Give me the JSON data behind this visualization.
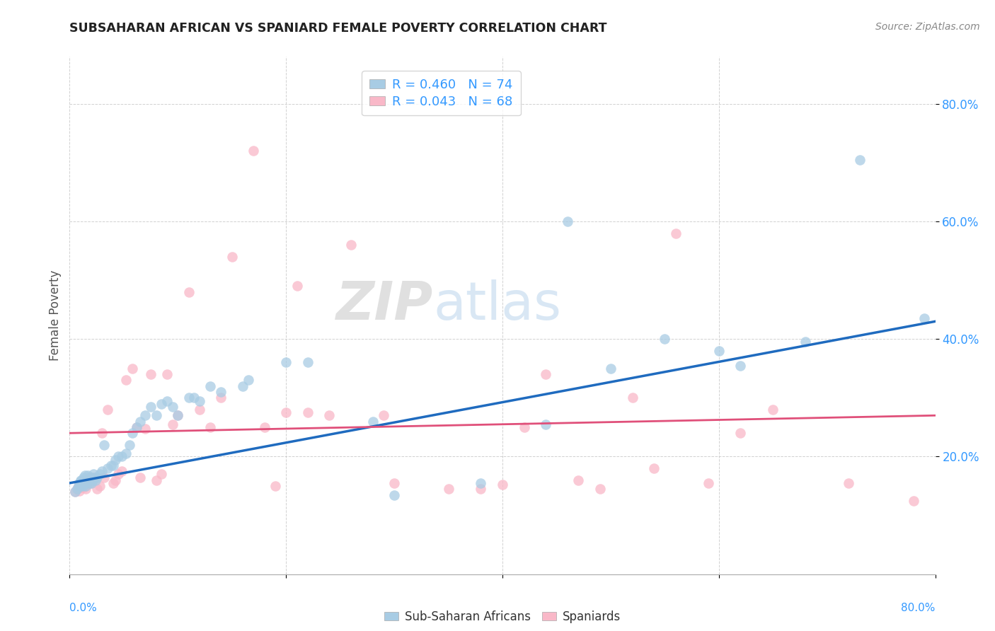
{
  "title": "SUBSAHARAN AFRICAN VS SPANIARD FEMALE POVERTY CORRELATION CHART",
  "source": "Source: ZipAtlas.com",
  "ylabel": "Female Poverty",
  "legend_label1": "Sub-Saharan Africans",
  "legend_label2": "Spaniards",
  "r1": 0.46,
  "n1": 74,
  "r2": 0.043,
  "n2": 68,
  "color1": "#a8cce4",
  "color2": "#f9b8c8",
  "line_color1": "#1f6bbf",
  "line_color2": "#e0507a",
  "watermark_zip": "ZIP",
  "watermark_atlas": "atlas",
  "xlim": [
    0.0,
    0.8
  ],
  "ylim": [
    0.0,
    0.88
  ],
  "yticks": [
    0.2,
    0.4,
    0.6,
    0.8
  ],
  "xticks": [
    0.0,
    0.2,
    0.4,
    0.6,
    0.8
  ],
  "blue_x": [
    0.005,
    0.007,
    0.008,
    0.009,
    0.01,
    0.01,
    0.01,
    0.01,
    0.011,
    0.012,
    0.012,
    0.013,
    0.013,
    0.013,
    0.014,
    0.014,
    0.015,
    0.015,
    0.015,
    0.016,
    0.017,
    0.017,
    0.018,
    0.018,
    0.019,
    0.02,
    0.02,
    0.021,
    0.022,
    0.023,
    0.024,
    0.025,
    0.028,
    0.03,
    0.032,
    0.035,
    0.038,
    0.04,
    0.042,
    0.045,
    0.048,
    0.052,
    0.055,
    0.058,
    0.062,
    0.065,
    0.07,
    0.075,
    0.08,
    0.085,
    0.09,
    0.095,
    0.1,
    0.11,
    0.115,
    0.12,
    0.13,
    0.14,
    0.16,
    0.165,
    0.2,
    0.22,
    0.28,
    0.3,
    0.38,
    0.44,
    0.46,
    0.5,
    0.55,
    0.6,
    0.62,
    0.68,
    0.73,
    0.79
  ],
  "blue_y": [
    0.14,
    0.145,
    0.15,
    0.155,
    0.15,
    0.155,
    0.158,
    0.16,
    0.155,
    0.15,
    0.16,
    0.165,
    0.155,
    0.158,
    0.162,
    0.168,
    0.15,
    0.155,
    0.16,
    0.158,
    0.162,
    0.168,
    0.155,
    0.16,
    0.165,
    0.155,
    0.165,
    0.16,
    0.17,
    0.165,
    0.16,
    0.165,
    0.17,
    0.175,
    0.22,
    0.18,
    0.185,
    0.185,
    0.195,
    0.2,
    0.2,
    0.205,
    0.22,
    0.24,
    0.25,
    0.26,
    0.27,
    0.285,
    0.27,
    0.29,
    0.295,
    0.285,
    0.27,
    0.3,
    0.3,
    0.295,
    0.32,
    0.31,
    0.32,
    0.33,
    0.36,
    0.36,
    0.26,
    0.135,
    0.155,
    0.255,
    0.6,
    0.35,
    0.4,
    0.38,
    0.355,
    0.395,
    0.705,
    0.435
  ],
  "pink_x": [
    0.005,
    0.007,
    0.008,
    0.009,
    0.01,
    0.01,
    0.011,
    0.012,
    0.013,
    0.014,
    0.015,
    0.016,
    0.017,
    0.018,
    0.019,
    0.02,
    0.021,
    0.022,
    0.025,
    0.028,
    0.03,
    0.032,
    0.035,
    0.04,
    0.042,
    0.045,
    0.048,
    0.052,
    0.058,
    0.062,
    0.065,
    0.07,
    0.075,
    0.08,
    0.085,
    0.09,
    0.095,
    0.1,
    0.11,
    0.12,
    0.13,
    0.14,
    0.15,
    0.17,
    0.18,
    0.19,
    0.2,
    0.21,
    0.22,
    0.24,
    0.26,
    0.29,
    0.3,
    0.35,
    0.38,
    0.4,
    0.42,
    0.44,
    0.47,
    0.49,
    0.52,
    0.54,
    0.56,
    0.59,
    0.62,
    0.65,
    0.72,
    0.78
  ],
  "pink_y": [
    0.14,
    0.145,
    0.15,
    0.142,
    0.148,
    0.155,
    0.152,
    0.158,
    0.148,
    0.155,
    0.145,
    0.152,
    0.16,
    0.165,
    0.158,
    0.155,
    0.162,
    0.165,
    0.145,
    0.15,
    0.24,
    0.165,
    0.28,
    0.155,
    0.16,
    0.17,
    0.175,
    0.33,
    0.35,
    0.25,
    0.165,
    0.248,
    0.34,
    0.16,
    0.17,
    0.34,
    0.255,
    0.27,
    0.48,
    0.28,
    0.25,
    0.3,
    0.54,
    0.72,
    0.25,
    0.15,
    0.275,
    0.49,
    0.275,
    0.27,
    0.56,
    0.27,
    0.155,
    0.145,
    0.145,
    0.152,
    0.25,
    0.34,
    0.16,
    0.145,
    0.3,
    0.18,
    0.58,
    0.155,
    0.24,
    0.28,
    0.155,
    0.125
  ],
  "blue_line_x0": 0.0,
  "blue_line_y0": 0.155,
  "blue_line_x1": 0.8,
  "blue_line_y1": 0.43,
  "pink_line_x0": 0.0,
  "pink_line_y0": 0.24,
  "pink_line_x1": 0.8,
  "pink_line_y1": 0.27
}
